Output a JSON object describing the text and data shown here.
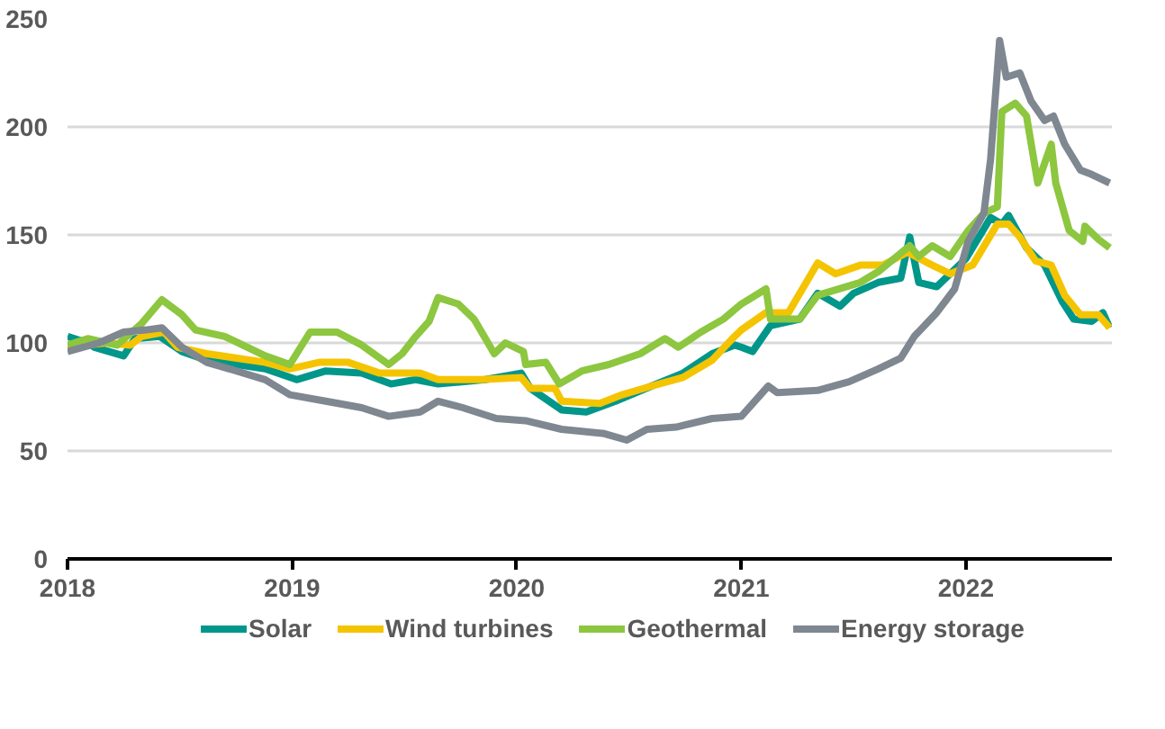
{
  "chart_data": {
    "type": "line",
    "xlim": [
      2018,
      2022.65
    ],
    "xticks": [
      2018,
      2019,
      2020,
      2021,
      2022
    ],
    "ylim": [
      0,
      250
    ],
    "yticks": [
      0,
      50,
      100,
      150,
      200,
      250
    ],
    "grid": "y",
    "legend": "bottom",
    "marker": "none",
    "line_style": "solid",
    "series": [
      {
        "name": "Solar",
        "color": "#00968a",
        "x": [
          2018.0,
          2018.09,
          2018.12,
          2018.25,
          2018.3,
          2018.41,
          2018.51,
          2018.62,
          2018.88,
          2019.02,
          2019.15,
          2019.31,
          2019.44,
          2019.55,
          2019.65,
          2019.86,
          2020.02,
          2020.06,
          2020.2,
          2020.31,
          2020.44,
          2020.6,
          2020.74,
          2020.87,
          2020.97,
          2021.0,
          2021.05,
          2021.13,
          2021.26,
          2021.34,
          2021.44,
          2021.5,
          2021.61,
          2021.71,
          2021.75,
          2021.79,
          2021.87,
          2022.0,
          2022.11,
          2022.16,
          2022.19,
          2022.27,
          2022.35,
          2022.43,
          2022.48,
          2022.56,
          2022.61,
          2022.64
        ],
        "values": [
          103,
          100,
          98,
          94,
          102,
          103,
          96,
          92,
          88,
          83,
          87,
          86,
          81,
          83,
          81,
          83,
          86,
          79,
          69,
          68,
          73,
          80,
          86,
          95,
          99,
          98,
          96,
          108,
          111,
          123,
          117,
          123,
          128,
          130,
          149,
          128,
          126,
          139,
          158,
          155,
          159,
          144,
          136,
          119,
          111,
          110,
          114,
          107
        ]
      },
      {
        "name": "Wind turbines",
        "color": "#f5c400",
        "x": [
          2018.0,
          2018.17,
          2018.28,
          2018.33,
          2018.43,
          2018.49,
          2018.62,
          2018.88,
          2018.99,
          2019.12,
          2019.25,
          2019.39,
          2019.57,
          2019.65,
          2019.84,
          2020.02,
          2020.06,
          2020.17,
          2020.2,
          2020.37,
          2020.47,
          2020.6,
          2020.74,
          2020.87,
          2020.97,
          2021.0,
          2021.11,
          2021.21,
          2021.34,
          2021.42,
          2021.53,
          2021.63,
          2021.74,
          2021.85,
          2021.93,
          2022.03,
          2022.14,
          2022.19,
          2022.24,
          2022.31,
          2022.38,
          2022.44,
          2022.51,
          2022.59,
          2022.64
        ],
        "values": [
          98,
          100,
          99,
          103,
          105,
          98,
          95,
          91,
          88,
          91,
          91,
          86,
          86,
          83,
          83,
          84,
          79,
          79,
          73,
          72,
          76,
          80,
          84,
          92,
          103,
          106,
          114,
          114,
          137,
          132,
          136,
          136,
          142,
          136,
          132,
          136,
          155,
          155,
          149,
          138,
          136,
          122,
          113,
          113,
          107
        ]
      },
      {
        "name": "Geothermal",
        "color": "#8dc63f",
        "x": [
          2018.0,
          2018.09,
          2018.22,
          2018.33,
          2018.42,
          2018.51,
          2018.57,
          2018.7,
          2018.78,
          2018.88,
          2018.99,
          2019.08,
          2019.2,
          2019.31,
          2019.43,
          2019.49,
          2019.55,
          2019.61,
          2019.65,
          2019.74,
          2019.81,
          2019.9,
          2019.95,
          2020.03,
          2020.04,
          2020.13,
          2020.19,
          2020.29,
          2020.41,
          2020.55,
          2020.66,
          2020.72,
          2020.82,
          2020.92,
          2021.0,
          2021.11,
          2021.13,
          2021.26,
          2021.34,
          2021.53,
          2021.61,
          2021.75,
          2021.79,
          2021.85,
          2021.93,
          2022.01,
          2022.08,
          2022.14,
          2022.16,
          2022.22,
          2022.27,
          2022.32,
          2022.38,
          2022.4,
          2022.46,
          2022.52,
          2022.53,
          2022.59,
          2022.64
        ],
        "values": [
          99,
          102,
          99,
          109,
          120,
          113,
          106,
          103,
          99,
          94,
          90,
          105,
          105,
          99,
          90,
          95,
          103,
          110,
          121,
          118,
          111,
          95,
          100,
          96,
          90,
          91,
          81,
          87,
          90,
          95,
          102,
          98,
          105,
          111,
          118,
          125,
          111,
          111,
          122,
          128,
          133,
          145,
          140,
          145,
          140,
          152,
          160,
          163,
          207,
          211,
          205,
          174,
          192,
          174,
          152,
          147,
          154,
          148,
          144
        ]
      },
      {
        "name": "Energy storage",
        "color": "#7f8790",
        "x": [
          2018.0,
          2018.14,
          2018.25,
          2018.35,
          2018.42,
          2018.51,
          2018.62,
          2018.72,
          2018.88,
          2018.99,
          2019.15,
          2019.31,
          2019.43,
          2019.57,
          2019.65,
          2019.76,
          2019.91,
          2020.04,
          2020.2,
          2020.39,
          2020.49,
          2020.58,
          2020.71,
          2020.87,
          2021.0,
          2021.12,
          2021.16,
          2021.34,
          2021.48,
          2021.61,
          2021.71,
          2021.77,
          2021.87,
          2021.95,
          2022.01,
          2022.08,
          2022.11,
          2022.15,
          2022.18,
          2022.24,
          2022.29,
          2022.35,
          2022.39,
          2022.44,
          2022.51,
          2022.56,
          2022.64
        ],
        "values": [
          96,
          100,
          105,
          106,
          107,
          98,
          91,
          88,
          83,
          76,
          73,
          70,
          66,
          68,
          73,
          70,
          65,
          64,
          60,
          58,
          55,
          60,
          61,
          65,
          66,
          80,
          77,
          78,
          82,
          88,
          93,
          103,
          114,
          125,
          147,
          160,
          185,
          240,
          223,
          225,
          212,
          203,
          205,
          192,
          180,
          178,
          174
        ]
      }
    ]
  }
}
